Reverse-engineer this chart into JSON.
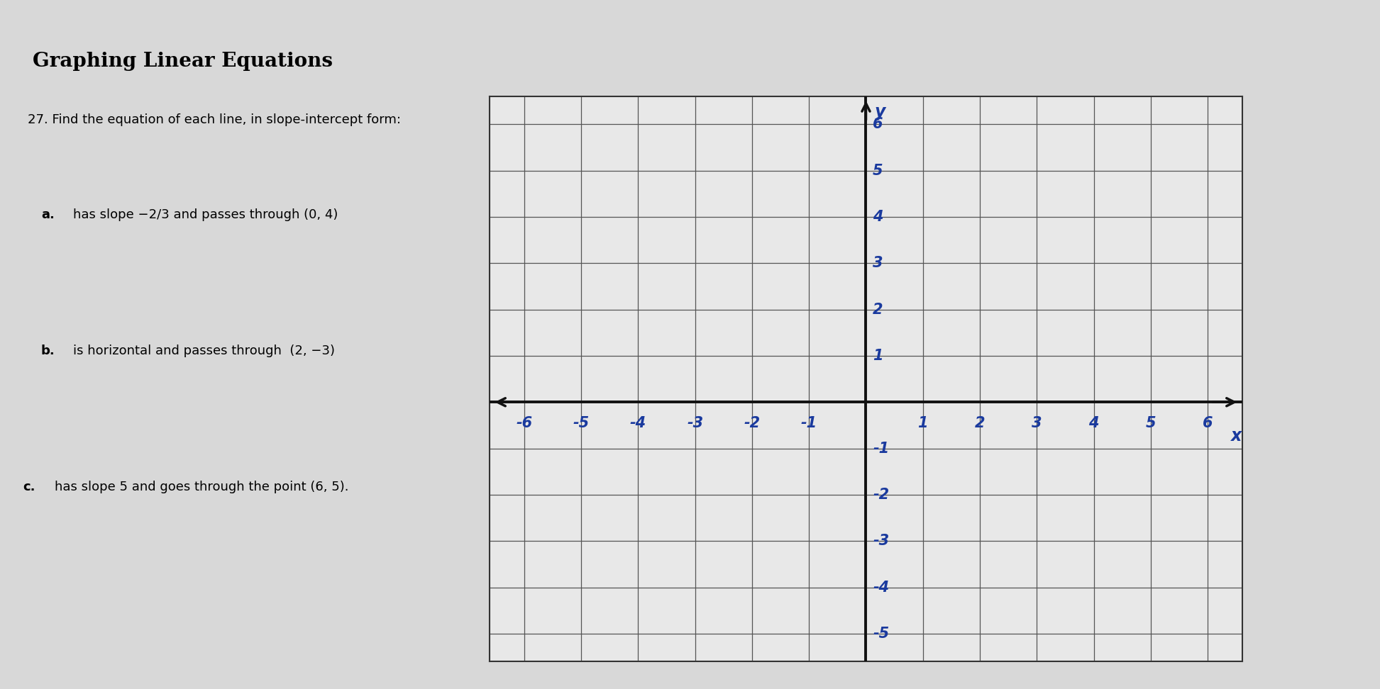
{
  "title": "Graphing Linear Equations",
  "problem_number": "27.",
  "problem_text": "Find the equation of each line, in slope-intercept form:",
  "parts": [
    {
      "label": "a.",
      "text": "has slope −2/3 and passes through (0, 4)"
    },
    {
      "label": "b.",
      "text": "is horizontal and passes through  (2, −3)"
    },
    {
      "label": "c.",
      "text": "has slope 5 and goes through the point (6, 5)."
    }
  ],
  "grid_x_min": -6,
  "grid_x_max": 6,
  "grid_y_min": -5,
  "grid_y_max": 6,
  "x_ticks": [
    -6,
    -5,
    -4,
    -3,
    -2,
    -1,
    1,
    2,
    3,
    4,
    5,
    6
  ],
  "y_ticks": [
    -5,
    -4,
    -3,
    -2,
    -1,
    1,
    2,
    3,
    4,
    5,
    6
  ],
  "axis_label_x": "x",
  "axis_label_y": "y",
  "handwritten_color": "#1a3a9e",
  "grid_color": "#555555",
  "axis_color": "#111111",
  "page_bg": "#d8d8d8",
  "paper_bg": "#e8e8e8",
  "banner_bg": "#c0c0c0",
  "graph_bg": "#e8e8e8",
  "graph_border": "#333333",
  "dark_corner_color": "#555555"
}
